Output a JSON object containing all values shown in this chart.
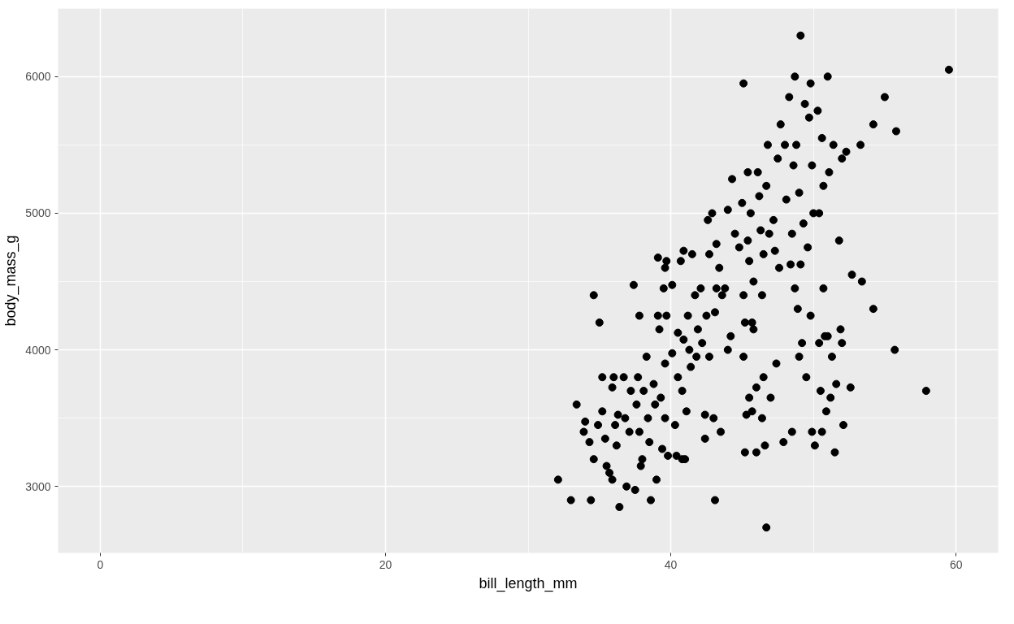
{
  "chart_data": {
    "type": "scatter",
    "xlabel": "bill_length_mm",
    "ylabel": "body_mass_g",
    "xlim": [
      -2.95,
      62.95
    ],
    "ylim": [
      2514,
      6498
    ],
    "xticks": [
      0,
      20,
      40,
      60
    ],
    "yticks": [
      3000,
      4000,
      5000,
      6000
    ],
    "grid": true,
    "marker": "circle",
    "series": [
      {
        "color": "#000000",
        "x": [
          32.1,
          33.0,
          33.4,
          34.0,
          33.9,
          34.3,
          34.4,
          34.6,
          34.6,
          35.0,
          34.9,
          35.2,
          35.2,
          35.4,
          35.5,
          35.7,
          35.9,
          35.9,
          36.0,
          36.1,
          36.2,
          36.3,
          36.4,
          36.7,
          36.8,
          36.9,
          37.1,
          37.2,
          37.4,
          37.5,
          37.6,
          37.8,
          37.7,
          37.8,
          37.9,
          38.0,
          38.1,
          38.3,
          38.4,
          38.5,
          38.6,
          38.8,
          38.9,
          39.0,
          39.1,
          39.1,
          39.2,
          39.3,
          39.4,
          39.5,
          39.6,
          39.7,
          39.6,
          39.6,
          39.7,
          39.8,
          40.1,
          40.1,
          40.3,
          40.4,
          40.5,
          40.5,
          40.7,
          40.8,
          40.9,
          40.8,
          40.9,
          41.0,
          41.1,
          41.2,
          41.3,
          41.4,
          41.5,
          41.7,
          41.8,
          41.9,
          42.1,
          42.2,
          42.4,
          42.4,
          42.5,
          42.6,
          42.7,
          42.7,
          42.9,
          43.0,
          43.1,
          43.1,
          43.2,
          43.2,
          43.4,
          43.5,
          43.6,
          43.8,
          44.0,
          44.0,
          44.2,
          44.3,
          44.5,
          44.8,
          45.0,
          45.1,
          45.1,
          45.2,
          45.1,
          45.2,
          45.3,
          45.4,
          45.4,
          45.5,
          45.5,
          45.6,
          45.7,
          45.7,
          45.8,
          45.8,
          46.0,
          46.0,
          46.1,
          46.2,
          46.3,
          46.4,
          46.4,
          46.5,
          46.5,
          46.6,
          46.7,
          46.7,
          46.8,
          46.9,
          47.0,
          47.2,
          47.3,
          47.4,
          47.5,
          47.6,
          47.7,
          47.9,
          48.0,
          48.1,
          48.3,
          48.4,
          48.5,
          48.5,
          48.6,
          48.7,
          48.7,
          48.8,
          48.9,
          49.0,
          49.0,
          49.1,
          49.1,
          49.2,
          49.3,
          49.4,
          49.5,
          49.6,
          49.7,
          49.8,
          49.8,
          49.9,
          49.9,
          50.0,
          50.1,
          50.3,
          50.4,
          50.4,
          50.5,
          50.6,
          50.6,
          50.7,
          50.7,
          50.8,
          50.9,
          51.0,
          51.0,
          51.1,
          51.2,
          51.3,
          51.4,
          51.5,
          51.6,
          51.8,
          51.9,
          52.0,
          52.0,
          52.1,
          52.3,
          52.6,
          52.7,
          53.3,
          53.4,
          54.2,
          54.2,
          55.0,
          55.7,
          55.8,
          57.9,
          59.5
        ],
        "values": [
          3050,
          2900,
          3600,
          3475,
          3400,
          3325,
          2900,
          4400,
          3200,
          4200,
          3450,
          3550,
          3800,
          3350,
          3150,
          3100,
          3725,
          3050,
          3800,
          3450,
          3300,
          3525,
          2850,
          3800,
          3500,
          3000,
          3400,
          3700,
          4475,
          2975,
          3600,
          4250,
          3800,
          3400,
          3150,
          3200,
          3700,
          3950,
          3500,
          3325,
          2900,
          3750,
          3600,
          3050,
          4250,
          4675,
          4150,
          3650,
          3275,
          4450,
          4600,
          4650,
          3900,
          3500,
          4250,
          3225,
          3975,
          4475,
          3450,
          3225,
          3800,
          4125,
          4650,
          3200,
          4725,
          3700,
          4075,
          3200,
          3550,
          4250,
          4000,
          3875,
          4700,
          4400,
          3950,
          4150,
          4450,
          4050,
          3525,
          3350,
          4250,
          4950,
          3950,
          4700,
          5000,
          3500,
          4275,
          2900,
          4775,
          4450,
          4600,
          3400,
          4400,
          4450,
          5025,
          4000,
          4100,
          5250,
          4850,
          4750,
          5075,
          5950,
          3950,
          3250,
          4400,
          4200,
          3525,
          5300,
          4800,
          3650,
          4650,
          5000,
          4200,
          3550,
          4500,
          4150,
          3725,
          3250,
          5300,
          5125,
          4875,
          4400,
          3500,
          3800,
          4700,
          3300,
          5200,
          2700,
          5500,
          4850,
          3650,
          4950,
          4725,
          3900,
          5400,
          4600,
          5650,
          3325,
          5500,
          5100,
          5850,
          4625,
          4850,
          3400,
          5350,
          4450,
          6000,
          5500,
          4300,
          3950,
          5150,
          6300,
          4625,
          4050,
          4925,
          5800,
          3800,
          4750,
          5700,
          5950,
          4250,
          5350,
          3400,
          5000,
          3300,
          5750,
          4050,
          5000,
          3700,
          5550,
          3400,
          4450,
          5200,
          4100,
          3550,
          6000,
          4100,
          5300,
          3650,
          3950,
          5500,
          3250,
          3750,
          4800,
          4150,
          4050,
          5400,
          3450,
          5450,
          3725,
          4550,
          5500,
          4500,
          4300,
          5650,
          5850,
          4000,
          5600,
          3700,
          6050
        ]
      }
    ]
  }
}
